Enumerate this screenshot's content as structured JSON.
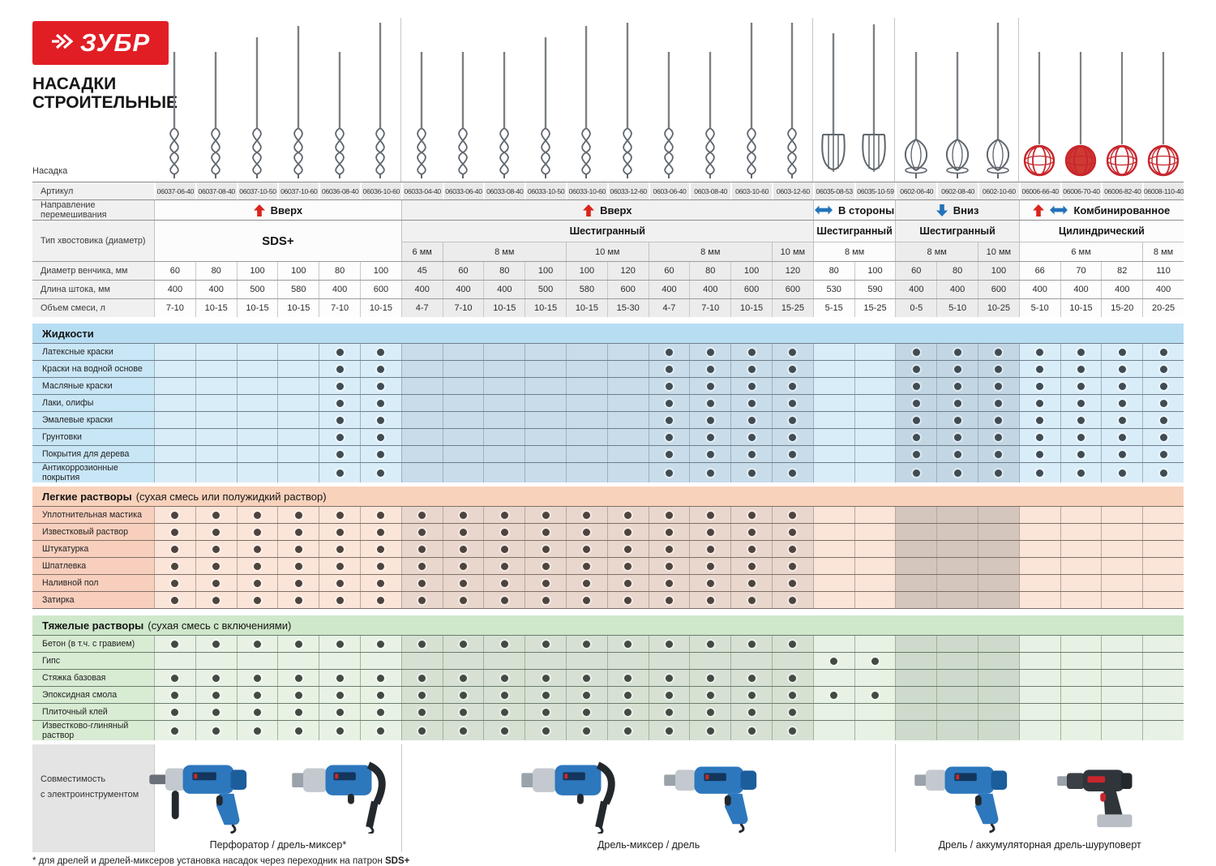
{
  "brand": {
    "logo_text": "ЗУБР",
    "title_line1": "НАСАДКИ",
    "title_line2": "СТРОИТЕЛЬНЫЕ"
  },
  "colors": {
    "brand_red": "#e21e25",
    "arrow_red": "#da251d",
    "arrow_blue": "#2273b9",
    "paddle_red": "#c8262c",
    "section_blue_band": "#b7ddf3",
    "section_orange_band": "#f9d2bc",
    "section_green_band": "#cfe7ca"
  },
  "table": {
    "row_labels": {
      "nozzle": "Насадка",
      "article": "Артикул",
      "direction": "Направление перемешивания",
      "shank": "Тип хвостовика (диаметр)",
      "diameter": "Диаметр венчика, мм",
      "length": "Длина штока, мм",
      "volume": "Объем смеси, л"
    },
    "articles": [
      "06037-06-40",
      "06037-08-40",
      "06037-10-50",
      "06037-10-60",
      "06036-08-40",
      "06036-10-60",
      "06033-04-40",
      "06033-06-40",
      "06033-08-40",
      "06033-10-50",
      "06033-10-60",
      "06033-12-60",
      "0603-06-40",
      "0603-08-40",
      "0603-10-60",
      "0603-12-60",
      "06035-08-53",
      "06035-10-59",
      "0602-06-40",
      "0602-08-40",
      "0602-10-60",
      "06006-66-40",
      "06006-70-40",
      "06006-82-40",
      "06008-110-40"
    ],
    "diameters": [
      60,
      80,
      100,
      100,
      80,
      100,
      45,
      60,
      80,
      100,
      100,
      120,
      60,
      80,
      100,
      120,
      80,
      100,
      60,
      80,
      100,
      66,
      70,
      82,
      110
    ],
    "lengths": [
      400,
      400,
      500,
      580,
      400,
      600,
      400,
      400,
      400,
      500,
      580,
      600,
      400,
      400,
      600,
      600,
      530,
      590,
      400,
      400,
      600,
      400,
      400,
      400,
      400
    ],
    "volumes": [
      "7-10",
      "10-15",
      "10-15",
      "10-15",
      "7-10",
      "10-15",
      "4-7",
      "7-10",
      "10-15",
      "10-15",
      "10-15",
      "15-30",
      "4-7",
      "7-10",
      "10-15",
      "15-25",
      "5-15",
      "15-25",
      "0-5",
      "5-10",
      "10-25",
      "5-10",
      "10-15",
      "15-20",
      "20-25"
    ],
    "solid_ball_col": 23,
    "groups": [
      {
        "direction": "Вверх",
        "arrows": [
          "up"
        ],
        "cols": [
          1,
          6
        ],
        "shank_type": "SDS+",
        "merged": true,
        "subs": [],
        "shaded": false,
        "paddle": "spiral"
      },
      {
        "direction": "Вверх",
        "arrows": [
          "up"
        ],
        "cols": [
          7,
          16
        ],
        "shank_type": "Шестигранный",
        "merged": false,
        "subs": [
          {
            "label": "6 мм",
            "cols": [
              7,
              7
            ]
          },
          {
            "label": "8 мм",
            "cols": [
              8,
              10
            ]
          },
          {
            "label": "10 мм",
            "cols": [
              11,
              12
            ]
          },
          {
            "label": "8 мм",
            "cols": [
              13,
              15
            ]
          },
          {
            "label": "10 мм",
            "cols": [
              16,
              16
            ]
          }
        ],
        "shaded": true,
        "paddle": "spiral"
      },
      {
        "direction": "В стороны",
        "arrows": [
          "sides"
        ],
        "cols": [
          17,
          18
        ],
        "shank_type": "Шестигранный",
        "merged": false,
        "subs": [
          {
            "label": "8 мм",
            "cols": [
              17,
              18
            ]
          }
        ],
        "shaded": false,
        "paddle": "frame"
      },
      {
        "direction": "Вниз",
        "arrows": [
          "down"
        ],
        "cols": [
          19,
          21
        ],
        "shank_type": "Шестигранный",
        "merged": false,
        "subs": [
          {
            "label": "8 мм",
            "cols": [
              19,
              20
            ]
          },
          {
            "label": "10 мм",
            "cols": [
              21,
              21
            ]
          }
        ],
        "shaded": true,
        "paddle": "disc"
      },
      {
        "direction": "Комбинированное",
        "arrows": [
          "up",
          "sides"
        ],
        "cols": [
          22,
          25
        ],
        "shank_type": "Цилиндрический",
        "merged": false,
        "subs": [
          {
            "label": "6 мм",
            "cols": [
              22,
              24
            ]
          },
          {
            "label": "8 мм",
            "cols": [
              25,
              25
            ]
          }
        ],
        "shaded": false,
        "paddle": "ball"
      }
    ]
  },
  "sections": [
    {
      "title": "Жидкости",
      "suffix": "",
      "palette": "blue",
      "rows": [
        {
          "label": "Латексные краски",
          "dots": "5-6,13-16,19-25"
        },
        {
          "label": "Краски на водной основе",
          "dots": "5-6,13-16,19-25"
        },
        {
          "label": "Масляные краски",
          "dots": "5-6,13-16,19-25"
        },
        {
          "label": "Лаки, олифы",
          "dots": "5-6,13-16,19-25"
        },
        {
          "label": "Эмалевые краски",
          "dots": "5-6,13-16,19-25"
        },
        {
          "label": "Грунтовки",
          "dots": "5-6,13-16,19-25"
        },
        {
          "label": "Покрытия для дерева",
          "dots": "5-6,13-16,19-25"
        },
        {
          "label": "Антикоррозионные покрытия",
          "dots": "5-6,13-16,19-25"
        }
      ]
    },
    {
      "title": "Легкие растворы",
      "suffix": "(сухая смесь или полужидкий раствор)",
      "palette": "orange",
      "rows": [
        {
          "label": "Уплотнительная мастика",
          "dots": "1-16"
        },
        {
          "label": "Известковый раствор",
          "dots": "1-16"
        },
        {
          "label": "Штукатурка",
          "dots": "1-16"
        },
        {
          "label": "Шпатлевка",
          "dots": "1-16"
        },
        {
          "label": "Наливной пол",
          "dots": "1-16"
        },
        {
          "label": "Затирка",
          "dots": "1-16"
        }
      ]
    },
    {
      "title": "Тяжелые растворы",
      "suffix": "(сухая смесь с включениями)",
      "palette": "green",
      "rows": [
        {
          "label": "Бетон (в т.ч. с гравием)",
          "dots": "1-16"
        },
        {
          "label": "Гипс",
          "dots": "17-18"
        },
        {
          "label": "Стяжка базовая",
          "dots": "1-16"
        },
        {
          "label": "Эпоксидная смола",
          "dots": "1-18"
        },
        {
          "label": "Плиточный клей",
          "dots": "1-16"
        },
        {
          "label": "Известково-глиняный раствор",
          "dots": "1-16"
        }
      ]
    }
  ],
  "bottom": {
    "label_line1": "Совместимость",
    "label_line2": "с электроинструментом",
    "groups": [
      {
        "caption": "Перфоратор / дрель-миксер*",
        "cols": [
          1,
          6
        ],
        "tools": [
          "perforator",
          "mixer-drill"
        ]
      },
      {
        "caption": "Дрель-миксер / дрель",
        "cols": [
          7,
          18
        ],
        "tools": [
          "mixer-drill",
          "drill"
        ]
      },
      {
        "caption": "Дрель / аккумуляторная дрель-шуруповерт",
        "cols": [
          19,
          25
        ],
        "tools": [
          "drill",
          "cordless-screwdriver"
        ]
      }
    ]
  },
  "footnote": {
    "text": "* для дрелей и дрелей-миксеров установка насадок через переходник на патрон",
    "bold": "SDS+"
  }
}
